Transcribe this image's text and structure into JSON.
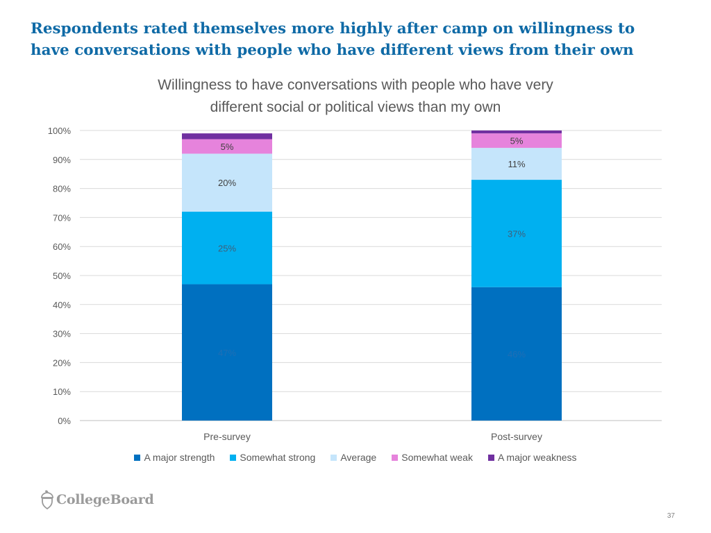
{
  "headline": {
    "line1": "Respondents rated themselves more highly after camp on willingness to",
    "line2": "have conversations with people who have different views from their own"
  },
  "chart_data": {
    "type": "bar",
    "stacked": true,
    "title_lines": [
      "Willingness to have conversations with people who have very",
      "different social or political views than my own"
    ],
    "categories": [
      "Pre-survey",
      "Post-survey"
    ],
    "series": [
      {
        "name": "A major strength",
        "values": [
          47,
          46
        ],
        "labels": [
          "47%",
          "46%"
        ],
        "color": "#0070c0",
        "label_color": "#1f6fb5"
      },
      {
        "name": "Somewhat strong",
        "values": [
          25,
          37
        ],
        "labels": [
          "25%",
          "37%"
        ],
        "color": "#00b0f0",
        "label_color": "#3f5f7a"
      },
      {
        "name": "Average",
        "values": [
          20,
          11
        ],
        "labels": [
          "20%",
          "11%"
        ],
        "color": "#c5e5fb",
        "label_color": "#404040"
      },
      {
        "name": "Somewhat weak",
        "values": [
          5,
          5
        ],
        "labels": [
          "5%",
          "5%"
        ],
        "color": "#e683dc",
        "label_color": "#404040"
      },
      {
        "name": "A major weakness",
        "values": [
          2,
          1
        ],
        "labels": [
          "",
          ""
        ],
        "color": "#7030a0",
        "label_color": "#404040"
      }
    ],
    "ylim": [
      0,
      100
    ],
    "yticks": [
      "0%",
      "10%",
      "20%",
      "30%",
      "40%",
      "50%",
      "60%",
      "70%",
      "80%",
      "90%",
      "100%"
    ],
    "grid": true,
    "legend_position": "bottom"
  },
  "footer": {
    "logo_text": "CollegeBoard",
    "page_number": "37"
  }
}
